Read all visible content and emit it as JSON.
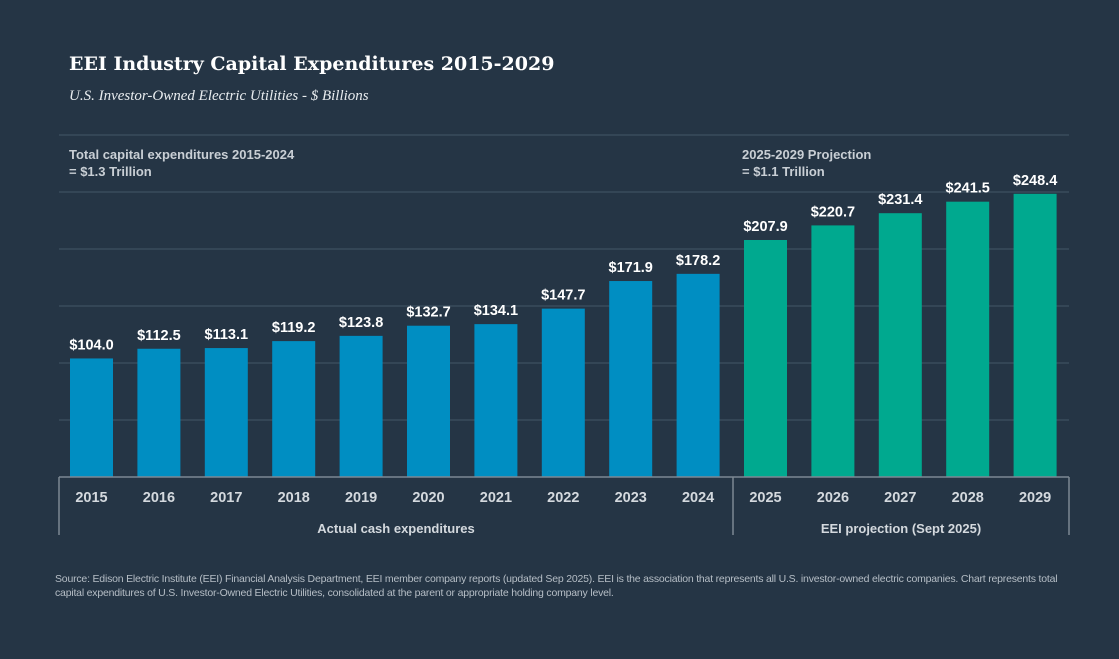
{
  "chart_data": {
    "type": "bar",
    "title": "EEI Industry Capital Expenditures 2015-2029",
    "subtitle": "U.S. Investor-Owned Electric Utilities - $ Billions",
    "categories": [
      "2015",
      "2016",
      "2017",
      "2018",
      "2019",
      "2020",
      "2021",
      "2022",
      "2023",
      "2024",
      "2025",
      "2026",
      "2027",
      "2028",
      "2029"
    ],
    "values": [
      104.0,
      112.5,
      113.1,
      119.2,
      123.8,
      132.7,
      134.1,
      147.7,
      171.9,
      178.2,
      207.9,
      220.7,
      231.4,
      241.5,
      248.4
    ],
    "data_labels": [
      "$104.0",
      "$112.5",
      "$113.1",
      "$119.2",
      "$123.8",
      "$132.7",
      "$134.1",
      "$147.7",
      "$171.9",
      "$178.2",
      "$207.9",
      "$220.7",
      "$231.4",
      "$241.5",
      "$248.4"
    ],
    "ylim": [
      0,
      300
    ],
    "grid_step": 50,
    "grid": true,
    "groups": [
      {
        "label": "Actual cash expenditures",
        "from": "2015",
        "to": "2024",
        "color": "#008ec2",
        "annotation": [
          "Total capital expenditures 2015-2024",
          "= $1.3 Trillion"
        ]
      },
      {
        "label": "EEI projection (Sept 2025)",
        "from": "2025",
        "to": "2029",
        "color": "#00a98f",
        "annotation": [
          "2025-2029 Projection",
          "= $1.1 Trillion"
        ]
      }
    ],
    "background": "#253545"
  },
  "footnote": "Source: Edison Electric Institute (EEI) Financial Analysis Department, EEI member company reports (updated Sep 2025). EEI is the association that represents all U.S. investor-owned electric companies. Chart represents total capital expenditures of U.S. Investor-Owned Electric Utilities, consolidated at the parent or appropriate holding company level."
}
